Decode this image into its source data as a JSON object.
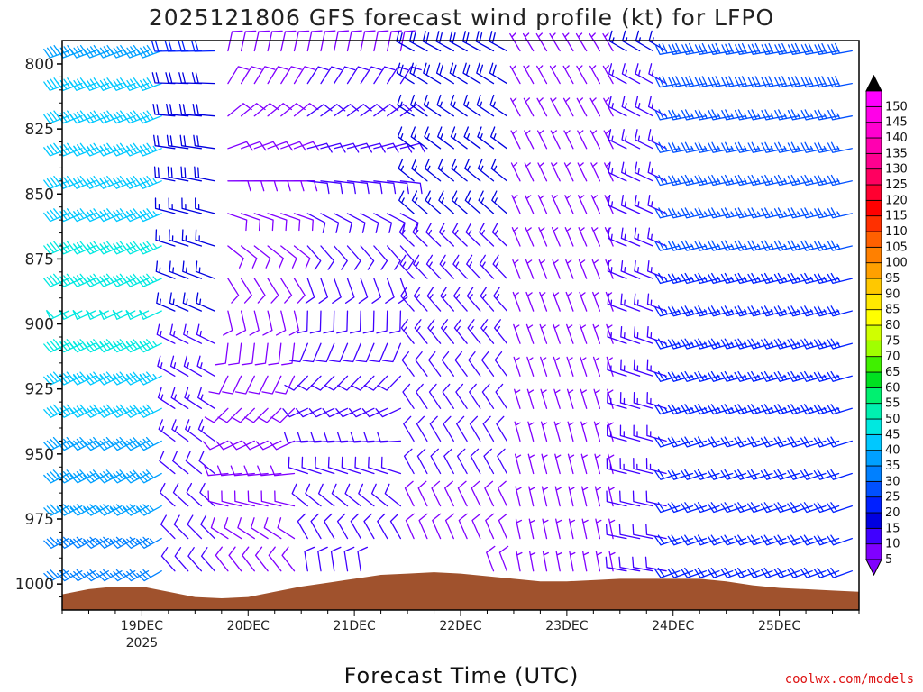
{
  "page": {
    "title": "2025121806 GFS forecast wind profile (kt) for LFPO",
    "xlabel": "Forecast Time (UTC)",
    "credit": "coolwx.com/models"
  },
  "chart_data": {
    "type": "wind_barbs",
    "title": "2025121806 GFS forecast wind profile (kt) for LFPO",
    "xlabel": "Forecast Time (UTC)",
    "ylabel": "",
    "units": "kt",
    "y_axis": {
      "ticks": [
        800,
        825,
        850,
        875,
        900,
        925,
        950,
        975,
        1000
      ],
      "range": [
        1010,
        791
      ],
      "direction": "pressure decreasing upward"
    },
    "x_axis": {
      "ticks": [
        {
          "label": "19DEC",
          "sublabel": "2025",
          "day": 1
        },
        {
          "label": "20DEC",
          "sublabel": "",
          "day": 2
        },
        {
          "label": "21DEC",
          "sublabel": "",
          "day": 3
        },
        {
          "label": "22DEC",
          "sublabel": "",
          "day": 4
        },
        {
          "label": "23DEC",
          "sublabel": "",
          "day": 5
        },
        {
          "label": "24DEC",
          "sublabel": "",
          "day": 6
        },
        {
          "label": "25DEC",
          "sublabel": "",
          "day": 7
        }
      ],
      "range_days": [
        0.25,
        7.75
      ]
    },
    "colorbar": {
      "levels": [
        5,
        10,
        15,
        20,
        25,
        30,
        35,
        40,
        45,
        50,
        55,
        60,
        65,
        70,
        75,
        80,
        85,
        90,
        95,
        100,
        105,
        110,
        115,
        120,
        125,
        130,
        135,
        140,
        145,
        150
      ],
      "colors": [
        "#8000ff",
        "#4000ff",
        "#0000e0",
        "#0020ff",
        "#0050ff",
        "#0080ff",
        "#00a0ff",
        "#00c8ff",
        "#00e8e0",
        "#00f0b0",
        "#00f070",
        "#00e020",
        "#40f000",
        "#a0ff00",
        "#d0ff00",
        "#ffff00",
        "#ffe800",
        "#ffc800",
        "#ffa000",
        "#ff8000",
        "#ff6000",
        "#ff3000",
        "#ff0000",
        "#ff0030",
        "#ff0060",
        "#ff0090",
        "#ff00b0",
        "#ff00d0",
        "#ff00e8",
        "#ff00ff"
      ],
      "over_color": "#000000"
    },
    "series": [
      {
        "t_start": 0.25,
        "t_end": 1.25,
        "dir_top": 250,
        "dir_bottom": 240,
        "speed_top": 40,
        "speed_mid": 48,
        "speed_bottom": 30
      },
      {
        "t_start": 1.25,
        "t_end": 1.75,
        "dir_top": 270,
        "dir_bottom": 320,
        "speed_top": 20,
        "speed_bottom": 10
      },
      {
        "t_start": 1.75,
        "t_end": 2.5,
        "dir_top": 20,
        "dir_bottom": 330,
        "speed_top": 8,
        "speed_bottom": 8
      },
      {
        "t_start": 2.5,
        "t_end": 3.5,
        "dir_top": 20,
        "dir_bottom": 360,
        "speed_top": 10,
        "speed_bottom": 12
      },
      {
        "t_start": 3.5,
        "t_end": 4.5,
        "dir_top": 300,
        "dir_bottom": 340,
        "speed_top": 18,
        "speed_bottom": 8
      },
      {
        "t_start": 4.5,
        "t_end": 5.5,
        "dir_top": 330,
        "dir_bottom": 350,
        "speed_top": 7,
        "speed_bottom": 7
      },
      {
        "t_start": 5.5,
        "t_end": 6.0,
        "dir_top": 300,
        "dir_bottom": 280,
        "speed_top": 15,
        "speed_bottom": 12
      },
      {
        "t_start": 6.0,
        "t_end": 7.75,
        "dir_top": 260,
        "dir_bottom": 250,
        "speed_top": 28,
        "speed_bottom": 20
      }
    ],
    "terrain": {
      "color": "#a0522d",
      "surface_pressure": [
        [
          0.25,
          1004
        ],
        [
          0.5,
          1002
        ],
        [
          0.75,
          1001
        ],
        [
          1.0,
          1001
        ],
        [
          1.25,
          1003
        ],
        [
          1.5,
          1005
        ],
        [
          1.75,
          1005.5
        ],
        [
          2.0,
          1005
        ],
        [
          2.25,
          1003
        ],
        [
          2.5,
          1001
        ],
        [
          2.75,
          999.5
        ],
        [
          3.0,
          998
        ],
        [
          3.25,
          996.5
        ],
        [
          3.5,
          996
        ],
        [
          3.75,
          995.5
        ],
        [
          4.0,
          996
        ],
        [
          4.25,
          997
        ],
        [
          4.5,
          998
        ],
        [
          4.75,
          999
        ],
        [
          5.0,
          999
        ],
        [
          5.25,
          998.5
        ],
        [
          5.5,
          998
        ],
        [
          5.75,
          998
        ],
        [
          6.0,
          998
        ],
        [
          6.25,
          998
        ],
        [
          6.5,
          999
        ],
        [
          6.75,
          1000.5
        ],
        [
          7.0,
          1001.5
        ],
        [
          7.25,
          1002
        ],
        [
          7.5,
          1002.5
        ],
        [
          7.75,
          1003
        ]
      ]
    }
  }
}
